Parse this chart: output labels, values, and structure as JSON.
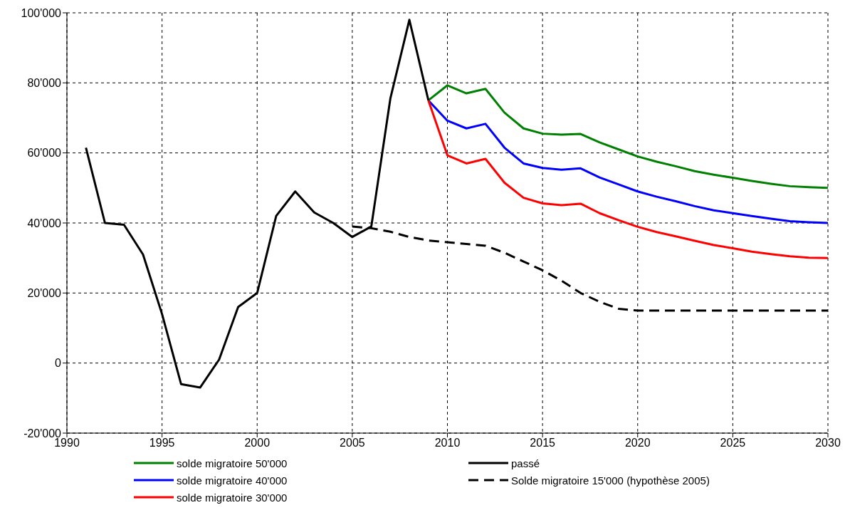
{
  "chart_data": {
    "type": "line",
    "xlim": [
      1990,
      2030
    ],
    "xticks": [
      1990,
      1995,
      2000,
      2005,
      2010,
      2015,
      2020,
      2025,
      2030
    ],
    "ylim": [
      -20000,
      100000
    ],
    "yticks": [
      {
        "value": -20000,
        "label": "-20'000"
      },
      {
        "value": 0,
        "label": "0"
      },
      {
        "value": 20000,
        "label": "20'000"
      },
      {
        "value": 40000,
        "label": "40'000"
      },
      {
        "value": 60000,
        "label": "60'000"
      },
      {
        "value": 80000,
        "label": "80'000"
      },
      {
        "value": 100000,
        "label": "100'000"
      }
    ],
    "grid": true,
    "legend": "bottom",
    "marker": "none",
    "series": [
      {
        "name": "solde migratoire 50'000",
        "color": "#008000",
        "x": [
          2009,
          2010,
          2011,
          2012,
          2013,
          2014,
          2015,
          2016,
          2017,
          2018,
          2019,
          2020,
          2021,
          2022,
          2023,
          2024,
          2025,
          2026,
          2027,
          2028,
          2029,
          2030
        ],
        "values": [
          75000,
          79300,
          77000,
          78300,
          71500,
          67000,
          65500,
          65200,
          65400,
          63000,
          61000,
          59000,
          57500,
          56200,
          54800,
          53800,
          52900,
          52000,
          51200,
          50500,
          50200,
          50000
        ]
      },
      {
        "name": "solde migratoire 40'000",
        "color": "#0000ff",
        "x": [
          2009,
          2010,
          2011,
          2012,
          2013,
          2014,
          2015,
          2016,
          2017,
          2018,
          2019,
          2020,
          2021,
          2022,
          2023,
          2024,
          2025,
          2026,
          2027,
          2028,
          2029,
          2030
        ],
        "values": [
          75000,
          69200,
          67000,
          68300,
          61500,
          57000,
          55700,
          55200,
          55600,
          53000,
          51000,
          49000,
          47500,
          46200,
          44800,
          43600,
          42800,
          42000,
          41200,
          40500,
          40200,
          40000
        ]
      },
      {
        "name": "solde migratoire 30'000",
        "color": "#ff0000",
        "x": [
          2009,
          2010,
          2011,
          2012,
          2013,
          2014,
          2015,
          2016,
          2017,
          2018,
          2019,
          2020,
          2021,
          2022,
          2023,
          2024,
          2025,
          2026,
          2027,
          2028,
          2029,
          2030
        ],
        "values": [
          75000,
          59300,
          57000,
          58300,
          51500,
          47200,
          45600,
          45100,
          45500,
          42800,
          40800,
          38900,
          37400,
          36200,
          34900,
          33700,
          32800,
          31800,
          31100,
          30500,
          30100,
          30000
        ]
      },
      {
        "name": "passé",
        "color": "#000000",
        "x": [
          1991,
          1992,
          1993,
          1994,
          1995,
          1996,
          1997,
          1998,
          1999,
          2000,
          2001,
          2002,
          2003,
          2004,
          2005,
          2006,
          2007,
          2008,
          2009
        ],
        "values": [
          61500,
          40000,
          39500,
          31000,
          14000,
          -6000,
          -7000,
          1000,
          16000,
          20000,
          42000,
          49000,
          43000,
          40000,
          36000,
          39000,
          75500,
          98000,
          75000
        ]
      },
      {
        "name": "Solde migratoire 15'000 (hypothèse 2005)",
        "color": "#000000",
        "line_style": "dashed",
        "x": [
          2005,
          2006,
          2007,
          2008,
          2009,
          2010,
          2011,
          2012,
          2013,
          2014,
          2015,
          2016,
          2017,
          2018,
          2019,
          2020,
          2021,
          2022,
          2023,
          2024,
          2025,
          2026,
          2027,
          2028,
          2029,
          2030
        ],
        "values": [
          39000,
          38500,
          37500,
          36000,
          35000,
          34500,
          34000,
          33500,
          31500,
          29000,
          26500,
          23500,
          20000,
          17500,
          15500,
          15000,
          15000,
          15000,
          15000,
          15000,
          15000,
          15000,
          15000,
          15000,
          15000,
          15000
        ]
      }
    ]
  }
}
